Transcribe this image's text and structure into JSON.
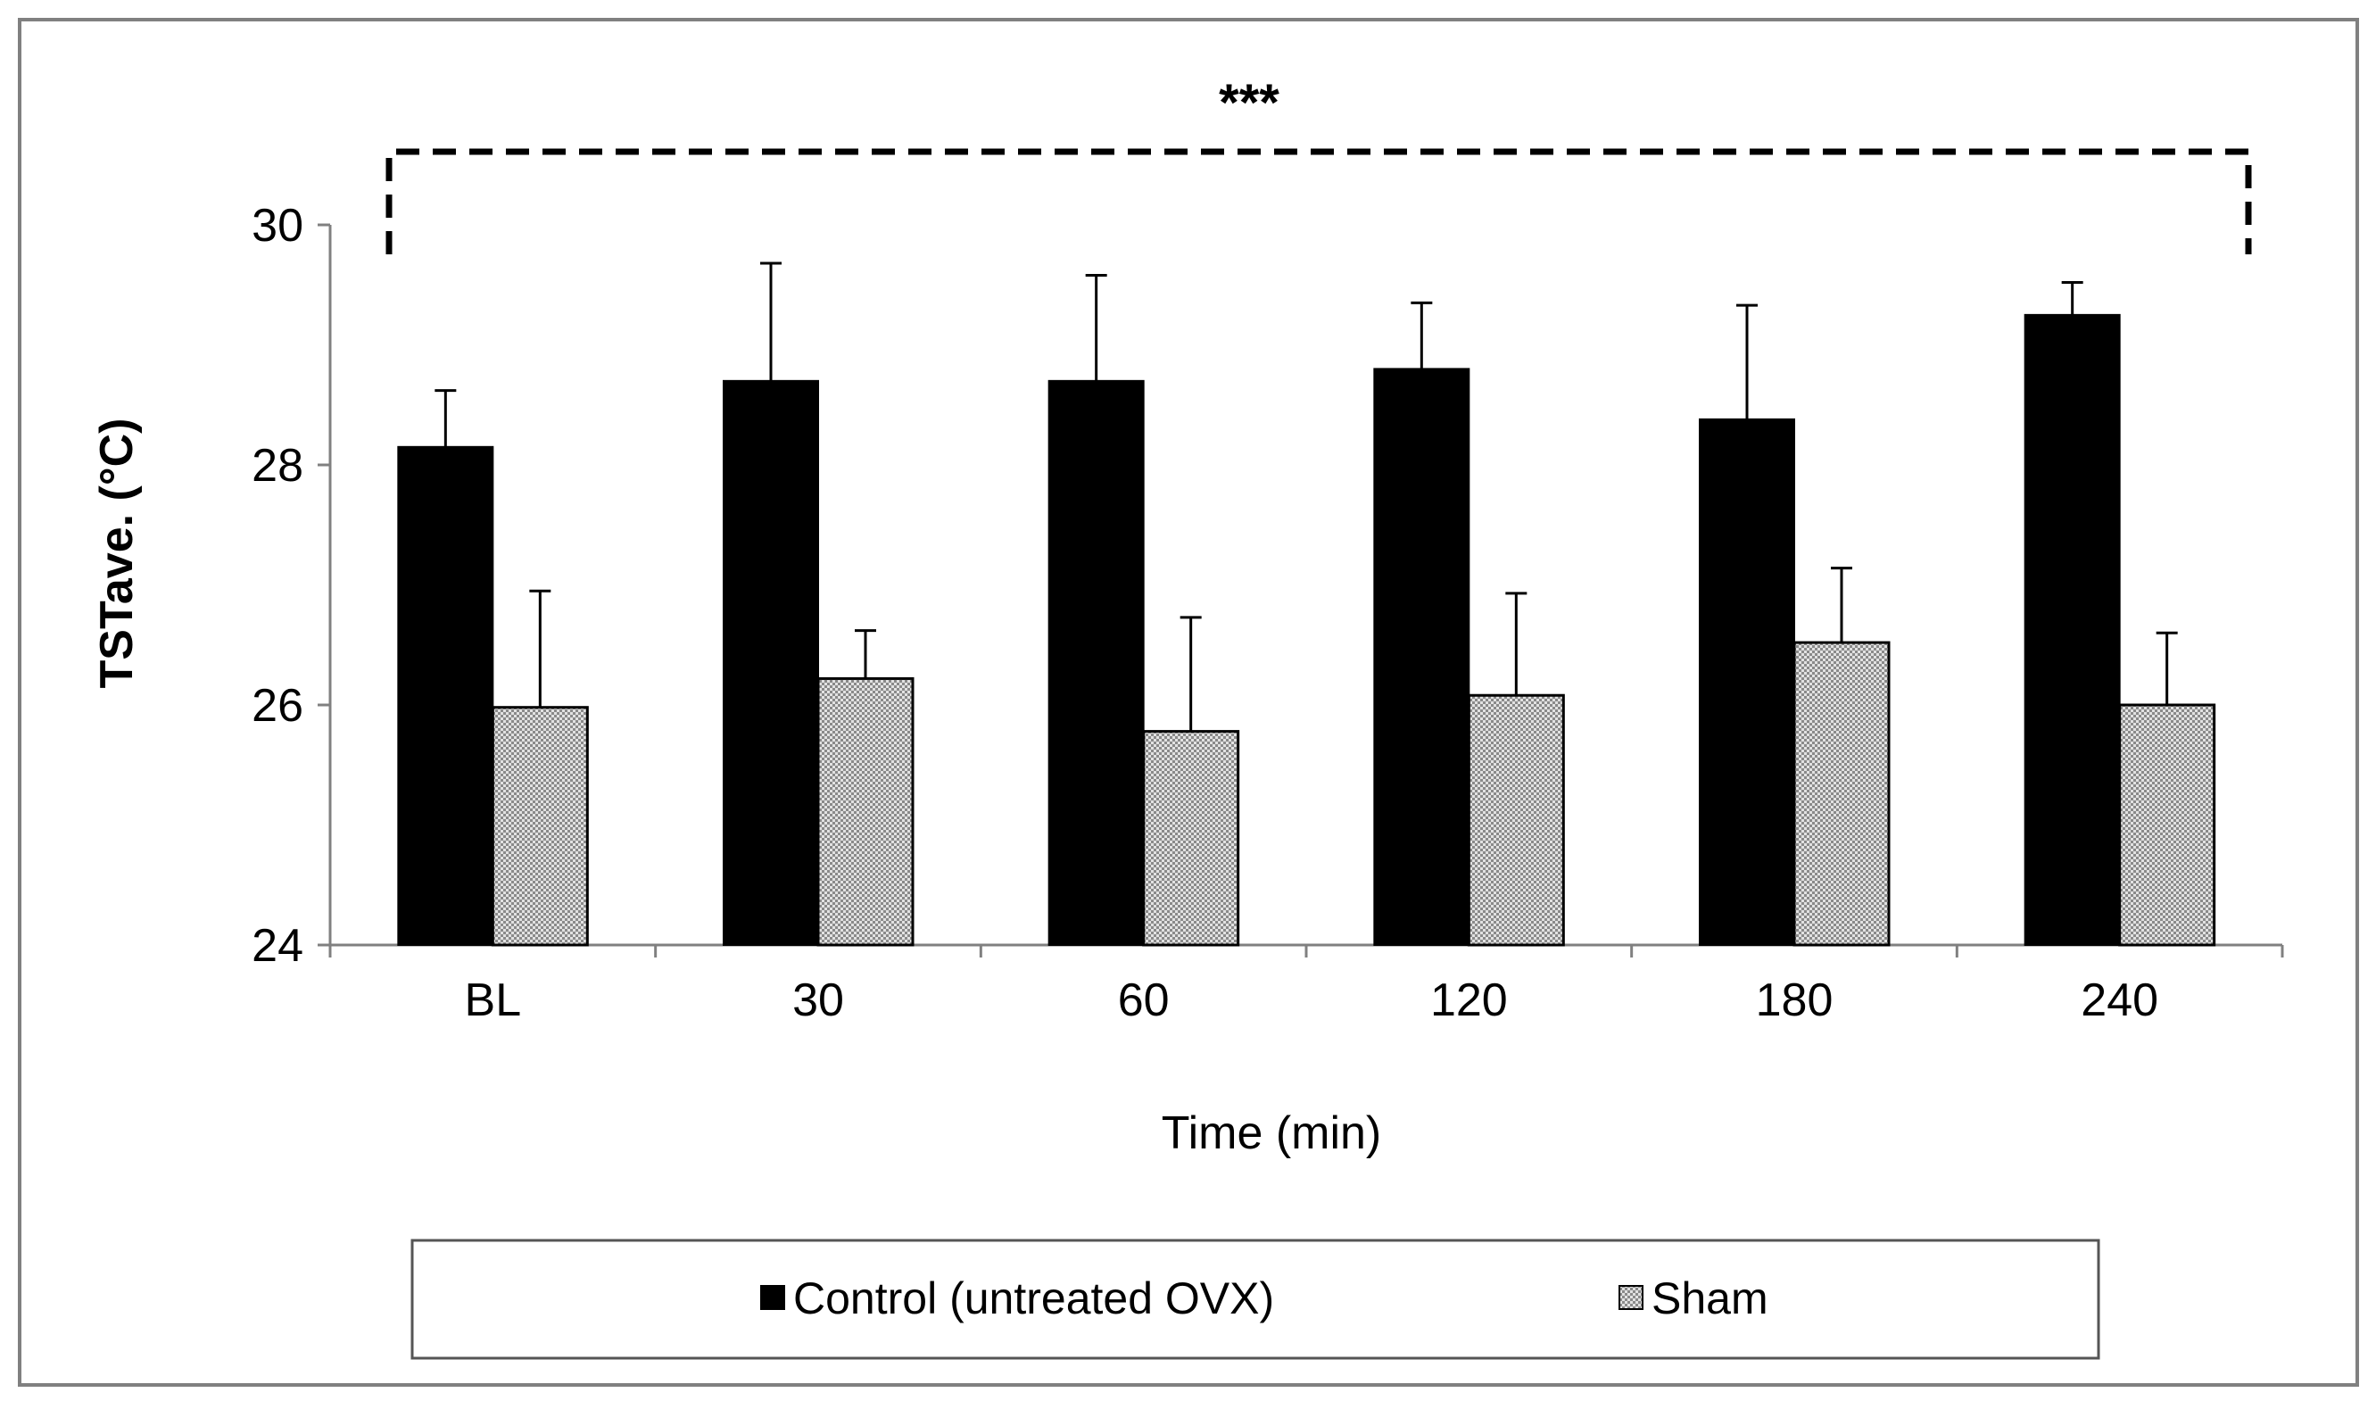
{
  "chart_data": {
    "type": "bar",
    "title": "",
    "xlabel": "Time (min)",
    "ylabel": "TSTave. (°C)",
    "ylim": [
      24,
      30
    ],
    "yticks": [
      24,
      26,
      28,
      30
    ],
    "categories": [
      "BL",
      "30",
      "60",
      "120",
      "180",
      "240"
    ],
    "series": [
      {
        "name": "Control (untreated OVX)",
        "color": "#000000",
        "pattern": "solid",
        "values": [
          28.15,
          28.7,
          28.7,
          28.8,
          28.38,
          29.25
        ],
        "errors": [
          0.47,
          0.98,
          0.88,
          0.55,
          0.95,
          0.27
        ]
      },
      {
        "name": "Sham",
        "color": "#cccccc",
        "pattern": "checker",
        "values": [
          25.98,
          26.22,
          25.78,
          26.08,
          26.52,
          26.0
        ],
        "errors": [
          0.97,
          0.4,
          0.95,
          0.85,
          0.62,
          0.6
        ]
      }
    ],
    "significance": {
      "label": "***",
      "from_category": "BL",
      "to_category": "240",
      "style": "dashed bracket above bars"
    },
    "legend": {
      "position": "bottom",
      "entries": [
        "Control (untreated OVX)",
        "Sham"
      ]
    },
    "grid": false
  }
}
